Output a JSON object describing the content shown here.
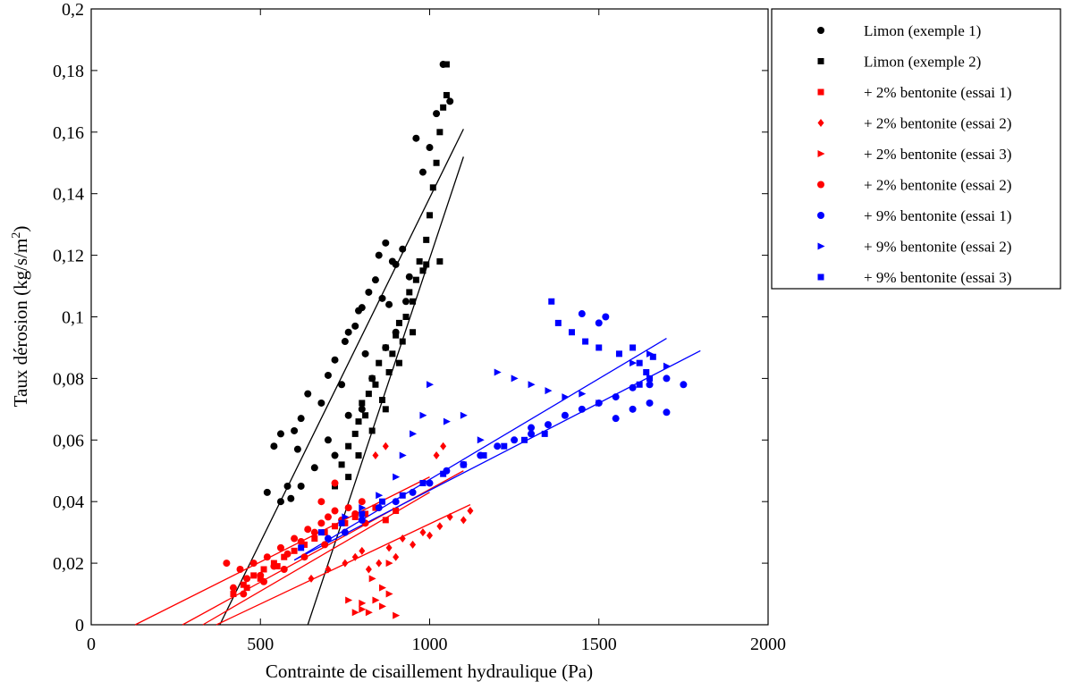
{
  "chart_data": {
    "type": "scatter",
    "title": "",
    "xlabel": "Contrainte de cisaillement hydraulique (Pa)",
    "ylabel_main": "Taux dérosion (kg/s/m",
    "ylabel_sup": "2",
    "ylabel_close": ")",
    "xlim": [
      0,
      2000
    ],
    "ylim": [
      0,
      0.2
    ],
    "xticks": [
      0,
      500,
      1000,
      1500,
      2000
    ],
    "xtick_labels": [
      "0",
      "500",
      "1000",
      "1500",
      "2000"
    ],
    "yticks": [
      0,
      0.02,
      0.04,
      0.06,
      0.08,
      0.1,
      0.12,
      0.14,
      0.16,
      0.18,
      0.2
    ],
    "ytick_labels": [
      "0",
      "0,02",
      "0,04",
      "0,06",
      "0,08",
      "0,1",
      "0,12",
      "0,14",
      "0,16",
      "0,18",
      "0,2"
    ],
    "grid": false,
    "legend_position": "outside-top-right",
    "series": [
      {
        "name": "Limon (exemple 1)",
        "color": "#000000",
        "marker": "circle",
        "points": [
          [
            520,
            0.043
          ],
          [
            540,
            0.058
          ],
          [
            560,
            0.062
          ],
          [
            580,
            0.045
          ],
          [
            590,
            0.041
          ],
          [
            600,
            0.063
          ],
          [
            610,
            0.057
          ],
          [
            620,
            0.067
          ],
          [
            640,
            0.075
          ],
          [
            660,
            0.051
          ],
          [
            680,
            0.072
          ],
          [
            700,
            0.081
          ],
          [
            720,
            0.086
          ],
          [
            740,
            0.078
          ],
          [
            750,
            0.092
          ],
          [
            760,
            0.095
          ],
          [
            780,
            0.097
          ],
          [
            790,
            0.102
          ],
          [
            800,
            0.103
          ],
          [
            810,
            0.088
          ],
          [
            820,
            0.108
          ],
          [
            840,
            0.112
          ],
          [
            850,
            0.12
          ],
          [
            860,
            0.106
          ],
          [
            870,
            0.124
          ],
          [
            880,
            0.104
          ],
          [
            890,
            0.118
          ],
          [
            900,
            0.117
          ],
          [
            920,
            0.122
          ],
          [
            940,
            0.113
          ],
          [
            960,
            0.158
          ],
          [
            980,
            0.147
          ],
          [
            1000,
            0.155
          ],
          [
            1020,
            0.166
          ],
          [
            1040,
            0.182
          ],
          [
            1060,
            0.17
          ],
          [
            700,
            0.06
          ],
          [
            720,
            0.055
          ],
          [
            760,
            0.068
          ],
          [
            800,
            0.07
          ],
          [
            830,
            0.08
          ],
          [
            870,
            0.09
          ],
          [
            900,
            0.095
          ],
          [
            930,
            0.105
          ],
          [
            560,
            0.04
          ],
          [
            620,
            0.045
          ]
        ]
      },
      {
        "name": "Limon (exemple 2)",
        "color": "#000000",
        "marker": "square",
        "points": [
          [
            720,
            0.045
          ],
          [
            740,
            0.052
          ],
          [
            760,
            0.058
          ],
          [
            780,
            0.062
          ],
          [
            790,
            0.066
          ],
          [
            800,
            0.072
          ],
          [
            810,
            0.068
          ],
          [
            820,
            0.075
          ],
          [
            830,
            0.08
          ],
          [
            840,
            0.078
          ],
          [
            850,
            0.085
          ],
          [
            860,
            0.073
          ],
          [
            870,
            0.09
          ],
          [
            880,
            0.082
          ],
          [
            890,
            0.088
          ],
          [
            900,
            0.094
          ],
          [
            910,
            0.098
          ],
          [
            920,
            0.092
          ],
          [
            930,
            0.1
          ],
          [
            940,
            0.108
          ],
          [
            950,
            0.105
          ],
          [
            960,
            0.112
          ],
          [
            970,
            0.118
          ],
          [
            980,
            0.115
          ],
          [
            990,
            0.125
          ],
          [
            1000,
            0.133
          ],
          [
            1010,
            0.142
          ],
          [
            1020,
            0.15
          ],
          [
            1030,
            0.16
          ],
          [
            1040,
            0.168
          ],
          [
            1050,
            0.172
          ],
          [
            760,
            0.048
          ],
          [
            790,
            0.055
          ],
          [
            830,
            0.063
          ],
          [
            870,
            0.07
          ],
          [
            910,
            0.085
          ],
          [
            950,
            0.095
          ],
          [
            990,
            0.117
          ],
          [
            1030,
            0.118
          ],
          [
            1050,
            0.182
          ]
        ]
      },
      {
        "name": "+ 2% bentonite (essai 1)",
        "color": "#ff0000",
        "marker": "square",
        "points": [
          [
            420,
            0.01
          ],
          [
            450,
            0.013
          ],
          [
            480,
            0.016
          ],
          [
            510,
            0.018
          ],
          [
            540,
            0.02
          ],
          [
            570,
            0.022
          ],
          [
            600,
            0.024
          ],
          [
            630,
            0.026
          ],
          [
            660,
            0.028
          ],
          [
            690,
            0.03
          ],
          [
            720,
            0.032
          ],
          [
            750,
            0.033
          ],
          [
            780,
            0.035
          ],
          [
            810,
            0.036
          ],
          [
            840,
            0.038
          ],
          [
            870,
            0.034
          ],
          [
            900,
            0.037
          ],
          [
            460,
            0.012
          ],
          [
            500,
            0.015
          ],
          [
            550,
            0.019
          ]
        ]
      },
      {
        "name": "+ 2% bentonite (essai 2)",
        "color": "#ff0000",
        "marker": "diamond",
        "points": [
          [
            650,
            0.015
          ],
          [
            700,
            0.018
          ],
          [
            750,
            0.02
          ],
          [
            780,
            0.022
          ],
          [
            800,
            0.024
          ],
          [
            820,
            0.018
          ],
          [
            850,
            0.02
          ],
          [
            880,
            0.025
          ],
          [
            900,
            0.022
          ],
          [
            920,
            0.028
          ],
          [
            950,
            0.026
          ],
          [
            980,
            0.03
          ],
          [
            1000,
            0.029
          ],
          [
            1030,
            0.032
          ],
          [
            1060,
            0.035
          ],
          [
            1100,
            0.034
          ],
          [
            1120,
            0.037
          ],
          [
            840,
            0.055
          ],
          [
            870,
            0.058
          ],
          [
            1020,
            0.055
          ],
          [
            1040,
            0.058
          ]
        ]
      },
      {
        "name": "+ 2% bentonite (essai 3)",
        "color": "#ff0000",
        "marker": "triangle",
        "points": [
          [
            780,
            0.004
          ],
          [
            800,
            0.005
          ],
          [
            820,
            0.004
          ],
          [
            840,
            0.008
          ],
          [
            860,
            0.006
          ],
          [
            880,
            0.01
          ],
          [
            900,
            0.003
          ],
          [
            830,
            0.015
          ],
          [
            860,
            0.012
          ],
          [
            880,
            0.02
          ],
          [
            760,
            0.008
          ],
          [
            800,
            0.007
          ]
        ]
      },
      {
        "name": "+ 2% bentonite (essai 2)",
        "color": "#ff0000",
        "marker": "circle",
        "points": [
          [
            400,
            0.02
          ],
          [
            420,
            0.012
          ],
          [
            440,
            0.018
          ],
          [
            460,
            0.015
          ],
          [
            480,
            0.02
          ],
          [
            500,
            0.016
          ],
          [
            520,
            0.022
          ],
          [
            540,
            0.019
          ],
          [
            560,
            0.025
          ],
          [
            580,
            0.023
          ],
          [
            600,
            0.028
          ],
          [
            620,
            0.027
          ],
          [
            640,
            0.031
          ],
          [
            660,
            0.03
          ],
          [
            680,
            0.033
          ],
          [
            700,
            0.035
          ],
          [
            720,
            0.037
          ],
          [
            740,
            0.034
          ],
          [
            760,
            0.038
          ],
          [
            780,
            0.036
          ],
          [
            800,
            0.04
          ],
          [
            450,
            0.01
          ],
          [
            510,
            0.014
          ],
          [
            570,
            0.018
          ],
          [
            630,
            0.022
          ],
          [
            690,
            0.026
          ],
          [
            750,
            0.03
          ],
          [
            810,
            0.033
          ],
          [
            680,
            0.04
          ],
          [
            720,
            0.046
          ]
        ]
      },
      {
        "name": "+ 9% bentonite (essai 1)",
        "color": "#0000ff",
        "marker": "circle",
        "points": [
          [
            700,
            0.028
          ],
          [
            750,
            0.03
          ],
          [
            800,
            0.034
          ],
          [
            850,
            0.038
          ],
          [
            900,
            0.04
          ],
          [
            950,
            0.043
          ],
          [
            1000,
            0.046
          ],
          [
            1050,
            0.05
          ],
          [
            1100,
            0.052
          ],
          [
            1150,
            0.055
          ],
          [
            1200,
            0.058
          ],
          [
            1250,
            0.06
          ],
          [
            1300,
            0.062
          ],
          [
            1350,
            0.065
          ],
          [
            1400,
            0.068
          ],
          [
            1450,
            0.07
          ],
          [
            1500,
            0.072
          ],
          [
            1550,
            0.074
          ],
          [
            1600,
            0.077
          ],
          [
            1650,
            0.078
          ],
          [
            1700,
            0.08
          ],
          [
            1750,
            0.078
          ],
          [
            1550,
            0.067
          ],
          [
            1600,
            0.07
          ],
          [
            1650,
            0.072
          ],
          [
            1700,
            0.069
          ],
          [
            1450,
            0.101
          ],
          [
            1500,
            0.098
          ],
          [
            1520,
            0.1
          ],
          [
            1300,
            0.064
          ]
        ]
      },
      {
        "name": "+ 9% bentonite (essai 2)",
        "color": "#0000ff",
        "marker": "triangle",
        "points": [
          [
            750,
            0.035
          ],
          [
            800,
            0.038
          ],
          [
            850,
            0.042
          ],
          [
            900,
            0.048
          ],
          [
            920,
            0.055
          ],
          [
            950,
            0.062
          ],
          [
            980,
            0.068
          ],
          [
            1000,
            0.078
          ],
          [
            1050,
            0.066
          ],
          [
            1100,
            0.068
          ],
          [
            1150,
            0.06
          ],
          [
            1200,
            0.082
          ],
          [
            1250,
            0.08
          ],
          [
            1300,
            0.078
          ],
          [
            1350,
            0.076
          ],
          [
            1400,
            0.074
          ],
          [
            1450,
            0.075
          ],
          [
            1500,
            0.072
          ],
          [
            1600,
            0.085
          ],
          [
            1650,
            0.088
          ],
          [
            1700,
            0.084
          ]
        ]
      },
      {
        "name": "+ 9% bentonite (essai 3)",
        "color": "#0000ff",
        "marker": "square",
        "points": [
          [
            620,
            0.025
          ],
          [
            680,
            0.03
          ],
          [
            740,
            0.033
          ],
          [
            800,
            0.036
          ],
          [
            860,
            0.04
          ],
          [
            920,
            0.042
          ],
          [
            980,
            0.046
          ],
          [
            1040,
            0.049
          ],
          [
            1100,
            0.052
          ],
          [
            1160,
            0.055
          ],
          [
            1220,
            0.058
          ],
          [
            1280,
            0.06
          ],
          [
            1340,
            0.062
          ],
          [
            1360,
            0.105
          ],
          [
            1380,
            0.098
          ],
          [
            1420,
            0.095
          ],
          [
            1460,
            0.092
          ],
          [
            1500,
            0.09
          ],
          [
            1560,
            0.088
          ],
          [
            1600,
            0.09
          ],
          [
            1620,
            0.085
          ],
          [
            1640,
            0.082
          ],
          [
            1660,
            0.087
          ],
          [
            1620,
            0.078
          ],
          [
            1650,
            0.08
          ]
        ]
      }
    ],
    "fit_lines": [
      {
        "color": "#000000",
        "x": [
          380,
          1100
        ],
        "y": [
          0,
          0.161
        ]
      },
      {
        "color": "#000000",
        "x": [
          640,
          1100
        ],
        "y": [
          0,
          0.152
        ]
      },
      {
        "color": "#ff0000",
        "x": [
          130,
          1000
        ],
        "y": [
          0,
          0.048
        ]
      },
      {
        "color": "#ff0000",
        "x": [
          270,
          1100
        ],
        "y": [
          0,
          0.05
        ]
      },
      {
        "color": "#ff0000",
        "x": [
          330,
          1000
        ],
        "y": [
          0,
          0.043
        ]
      },
      {
        "color": "#ff0000",
        "x": [
          370,
          1120
        ],
        "y": [
          0,
          0.039
        ]
      },
      {
        "color": "#0000ff",
        "x": [
          600,
          1700
        ],
        "y": [
          0.021,
          0.093
        ]
      },
      {
        "color": "#0000ff",
        "x": [
          600,
          1800
        ],
        "y": [
          0.021,
          0.089
        ]
      }
    ]
  }
}
